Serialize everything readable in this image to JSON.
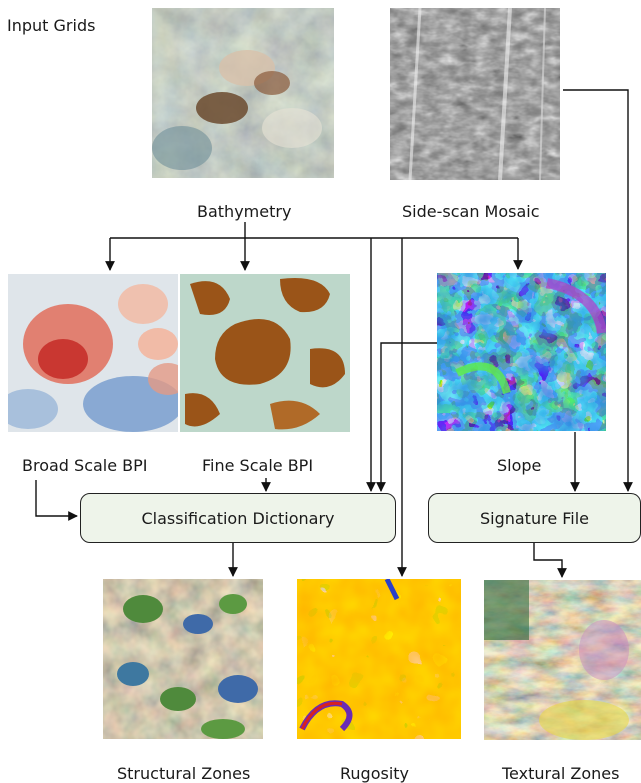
{
  "header": {
    "input_grids": "Input Grids"
  },
  "inputs": {
    "bathymetry": "Bathymetry",
    "sidescan": "Side-scan Mosaic"
  },
  "derived": {
    "broad_bpi": "Broad Scale BPI",
    "fine_bpi": "Fine Scale BPI",
    "slope": "Slope"
  },
  "processes": {
    "classification": "Classification Dictionary",
    "signature": "Signature File"
  },
  "outputs": {
    "structural": "Structural Zones",
    "rugosity": "Rugosity",
    "textural": "Textural Zones"
  }
}
